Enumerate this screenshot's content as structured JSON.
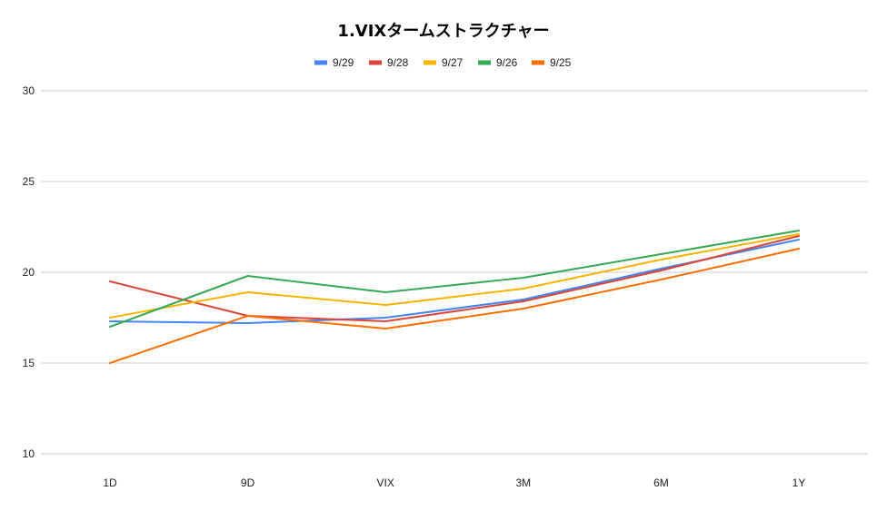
{
  "chart_data": {
    "type": "line",
    "title": "1.VIXタームストラクチャー",
    "xlabel": "",
    "ylabel": "",
    "categories": [
      "1D",
      "9D",
      "VIX",
      "3M",
      "6M",
      "1Y"
    ],
    "ylim": [
      10,
      30
    ],
    "yticks": [
      10,
      15,
      20,
      25,
      30
    ],
    "grid": true,
    "legend_position": "top",
    "series": [
      {
        "name": "9/29",
        "color": "#4285f4",
        "values": [
          17.3,
          17.2,
          17.5,
          18.5,
          20.2,
          21.8
        ]
      },
      {
        "name": "9/28",
        "color": "#db4437",
        "values": [
          19.5,
          17.6,
          17.3,
          18.4,
          20.1,
          22.0
        ]
      },
      {
        "name": "9/27",
        "color": "#f4b400",
        "values": [
          17.5,
          18.9,
          18.2,
          19.1,
          20.7,
          22.1
        ]
      },
      {
        "name": "9/26",
        "color": "#34a853",
        "values": [
          17.0,
          19.8,
          18.9,
          19.7,
          21.0,
          22.3
        ]
      },
      {
        "name": "9/25",
        "color": "#ff6d01",
        "values": [
          15.0,
          17.6,
          16.9,
          18.0,
          19.6,
          21.3
        ]
      }
    ]
  }
}
